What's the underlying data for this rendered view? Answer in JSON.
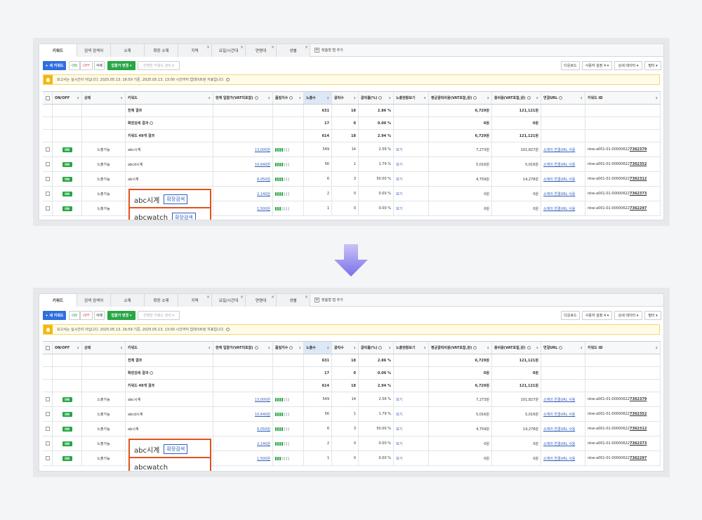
{
  "tabs": [
    {
      "label": "키워드",
      "active": true,
      "close": false,
      "w": 54
    },
    {
      "label": "검색 검색어",
      "active": false,
      "close": false,
      "w": 48
    },
    {
      "label": "소재",
      "active": false,
      "close": false,
      "w": 48
    },
    {
      "label": "확장 소재",
      "active": false,
      "close": false,
      "w": 48
    },
    {
      "label": "지역",
      "active": false,
      "close": true,
      "w": 48
    },
    {
      "label": "요일/시간대",
      "active": false,
      "close": true,
      "w": 48
    },
    {
      "label": "연령대",
      "active": false,
      "close": true,
      "w": 44
    },
    {
      "label": "성별",
      "active": false,
      "close": true,
      "w": 48
    }
  ],
  "tab_add_label": "맞춤형 탭 추가",
  "toolbar": {
    "new_keyword": "+ 새 키워드",
    "on": "ON",
    "off": "OFF",
    "delete": "삭제",
    "bid_change": "입찰가 변경 ▾",
    "selected_manage": "선택한 키워드 관리 ▾",
    "download": "다운로드",
    "user_setting": "사용자 설정 4 ▾",
    "detail_data": "상세 데이터 ▾",
    "filter": "필터 ▾"
  },
  "notice": {
    "text": "보고서는 실시간이 아닙니다. 2025.05.13. 16:59 기준, 2025.05.13. 13:00 시간까지 업데이트된 지표입니다."
  },
  "table": {
    "headers": [
      "",
      "ON/OFF",
      "상태",
      "키워드",
      "현재 입찰가(VAT미포함)",
      "품질지수",
      "노출수",
      "클릭수",
      "클릭률(%)",
      "노출현황보기",
      "평균클릭비용(VAT포함,원)",
      "총비용(VAT포함,원)",
      "연결URL",
      "키워드 ID"
    ],
    "summary": [
      {
        "label": "전체 결과",
        "imp": "631",
        "clk": "18",
        "ctr": "2.86 %",
        "cpc": "6,729원",
        "cost": "121,121원"
      },
      {
        "label": "확장검색 결과",
        "imp": "17",
        "clk": "0",
        "ctr": "0.00 %",
        "cpc": "0원",
        "cost": "0원"
      },
      {
        "label": "키워드 49개 결과",
        "imp": "614",
        "clk": "18",
        "ctr": "2.94 %",
        "cpc": "6,729원",
        "cost": "121,121원"
      }
    ],
    "rows": [
      {
        "toggle": "ON",
        "status": "노출가능",
        "keyword": "abc시계",
        "bid": "13,000원",
        "quality": 4,
        "imp": "549",
        "clk": "14",
        "ctr": "2.56 %",
        "view": "보기",
        "cpc": "7,273원",
        "cost": "101,827원",
        "url": "소재의 연결URL 사용",
        "id_prefix": "nkw-a001-01-00000622",
        "id_suffix": "7362379"
      },
      {
        "toggle": "ON",
        "status": "노출가능",
        "keyword": "abcd시계",
        "bid": "10,640원",
        "quality": 4,
        "imp": "56",
        "clk": "1",
        "ctr": "1.79 %",
        "view": "보기",
        "cpc": "5,016원",
        "cost": "5,016원",
        "url": "소재의 연결URL 사용",
        "id_prefix": "nkw-a001-01-00000622",
        "id_suffix": "7362352"
      },
      {
        "toggle": "ON",
        "status": "노출가능",
        "keyword": "ab시계",
        "bid": "6,050원",
        "quality": 4,
        "imp": "6",
        "clk": "3",
        "ctr": "50.00 %",
        "view": "보기",
        "cpc": "4,759원",
        "cost": "14,278원",
        "url": "소재의 연결URL 사용",
        "id_prefix": "nkw-a001-01-00000622",
        "id_suffix": "7362312"
      },
      {
        "toggle": "ON",
        "status": "노출가능",
        "keyword": "",
        "bid": "2,140원",
        "quality": 4,
        "imp": "2",
        "clk": "0",
        "ctr": "0.00 %",
        "view": "보기",
        "cpc": "0원",
        "cost": "0원",
        "url": "소재의 연결URL 사용",
        "id_prefix": "nkw-a001-01-00000622",
        "id_suffix": "7362373"
      },
      {
        "toggle": "ON",
        "status": "노출가능",
        "keyword": "",
        "bid": "1,500원",
        "quality": 3,
        "imp": "1",
        "clk": "0",
        "ctr": "0.00 %",
        "view": "보기",
        "cpc": "0원",
        "cost": "0원",
        "url": "소재의 연결URL 사용",
        "id_prefix": "nkw-a001-01-00000622",
        "id_suffix": "7362297"
      }
    ]
  },
  "callouts_top": [
    {
      "keyword": "abc시계",
      "tag": "확장검색"
    },
    {
      "keyword": "abcwatch",
      "tag": "확장검색"
    }
  ],
  "callouts_bottom": [
    {
      "keyword": "abc시계",
      "tag": "확장검색"
    },
    {
      "keyword": "abcwatch",
      "tag": ""
    }
  ],
  "colors": {
    "accent": "#2f6fde",
    "on_green": "#28a745",
    "callout": "#e2531d",
    "arrow": "#8a7ff0"
  }
}
